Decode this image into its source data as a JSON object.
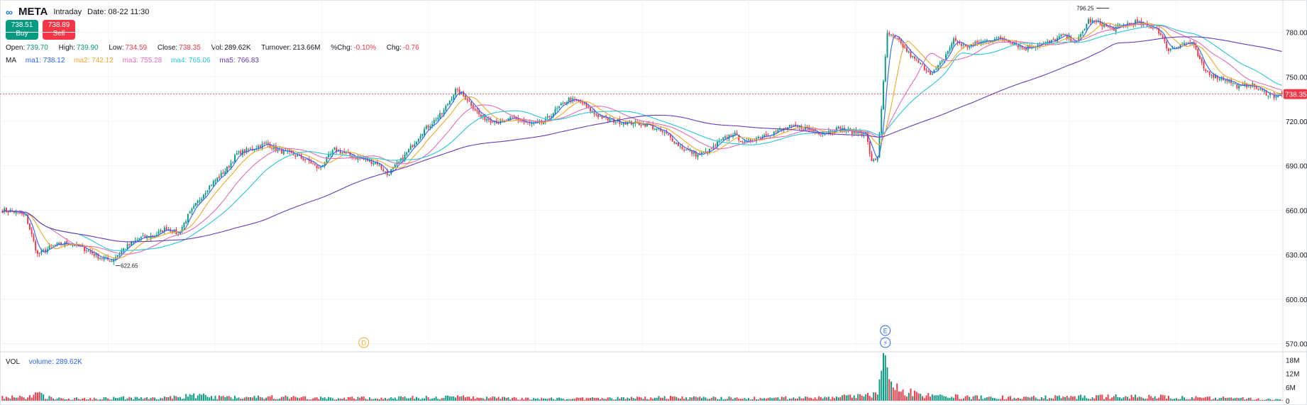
{
  "header": {
    "symbol": "META",
    "mode": "Intraday",
    "date_label": "Date: 08-22 11:30"
  },
  "buttons": {
    "buy_price": "738.51",
    "buy_label": "Buy",
    "sell_price": "738.89",
    "sell_label": "Sell"
  },
  "ohlc": {
    "open_label": "Open:",
    "open": "739.70",
    "high_label": "High:",
    "high": "739.90",
    "low_label": "Low:",
    "low": "734.59",
    "close_label": "Close:",
    "close": "738.35",
    "vol_label": "Vol:",
    "vol": "289.62K",
    "turnover_label": "Turnover:",
    "turnover": "213.66M",
    "pchg_label": "%Chg:",
    "pchg": "-0.10%",
    "chg_label": "Chg:",
    "chg": "-0.76"
  },
  "ma_legend": {
    "title": "MA",
    "items": [
      {
        "label": "ma1: 738.12",
        "color": "#2962ff"
      },
      {
        "label": "ma2: 742.12",
        "color": "#f5a623"
      },
      {
        "label": "ma3: 755.28",
        "color": "#e36bb8"
      },
      {
        "label": "ma4: 765.06",
        "color": "#26c6da"
      },
      {
        "label": "ma5: 766.83",
        "color": "#673ab7"
      }
    ]
  },
  "volume_legend": {
    "title": "VOL",
    "label": "volume: 289.62K"
  },
  "chart_data": {
    "type": "candlestick",
    "price_axis": {
      "ticks": [
        "780.00",
        "750.00",
        "720.00",
        "690.00",
        "660.00",
        "630.00",
        "600.00",
        "570.00"
      ],
      "ylim": [
        565,
        797
      ]
    },
    "volume_axis": {
      "ticks": [
        "18M",
        "12M",
        "6M",
        "0"
      ],
      "ylim": [
        0,
        20
      ]
    },
    "last_price": "738.35",
    "annotations": {
      "high": "796.25",
      "low": "622.65",
      "markers": [
        "D",
        "E",
        "⚡"
      ]
    },
    "up_color": "#089981",
    "down_color": "#f23645",
    "anchors": [
      [
        0,
        660
      ],
      [
        6,
        659
      ],
      [
        12,
        656
      ],
      [
        18,
        630
      ],
      [
        26,
        636
      ],
      [
        34,
        638
      ],
      [
        42,
        634
      ],
      [
        50,
        628
      ],
      [
        56,
        626
      ],
      [
        62,
        634
      ],
      [
        70,
        641
      ],
      [
        78,
        643
      ],
      [
        84,
        648
      ],
      [
        90,
        644
      ],
      [
        95,
        656
      ],
      [
        105,
        675
      ],
      [
        115,
        688
      ],
      [
        120,
        698
      ],
      [
        127,
        701
      ],
      [
        135,
        705
      ],
      [
        142,
        700
      ],
      [
        150,
        697
      ],
      [
        157,
        693
      ],
      [
        162,
        688
      ],
      [
        170,
        701
      ],
      [
        178,
        697
      ],
      [
        185,
        694
      ],
      [
        192,
        692
      ],
      [
        197,
        684
      ],
      [
        205,
        695
      ],
      [
        215,
        713
      ],
      [
        225,
        725
      ],
      [
        232,
        741
      ],
      [
        238,
        735
      ],
      [
        245,
        723
      ],
      [
        255,
        719
      ],
      [
        262,
        722
      ],
      [
        270,
        718
      ],
      [
        277,
        719
      ],
      [
        282,
        726
      ],
      [
        290,
        735
      ],
      [
        297,
        732
      ],
      [
        303,
        725
      ],
      [
        310,
        721
      ],
      [
        320,
        719
      ],
      [
        330,
        718
      ],
      [
        340,
        711
      ],
      [
        348,
        702
      ],
      [
        356,
        697
      ],
      [
        362,
        700
      ],
      [
        367,
        706
      ],
      [
        374,
        712
      ],
      [
        380,
        705
      ],
      [
        388,
        710
      ],
      [
        396,
        713
      ],
      [
        403,
        716
      ],
      [
        410,
        716
      ],
      [
        414,
        714
      ],
      [
        420,
        712
      ],
      [
        428,
        715
      ],
      [
        435,
        713
      ],
      [
        442,
        712
      ],
      [
        445,
        692
      ],
      [
        448,
        696
      ],
      [
        453,
        779
      ],
      [
        458,
        775
      ],
      [
        466,
        763
      ],
      [
        471,
        757
      ],
      [
        476,
        752
      ],
      [
        481,
        760
      ],
      [
        487,
        775
      ],
      [
        493,
        770
      ],
      [
        500,
        773
      ],
      [
        508,
        776
      ],
      [
        516,
        774
      ],
      [
        523,
        769
      ],
      [
        530,
        772
      ],
      [
        536,
        773
      ],
      [
        543,
        778
      ],
      [
        550,
        773
      ],
      [
        556,
        788
      ],
      [
        562,
        786
      ],
      [
        568,
        782
      ],
      [
        574,
        785
      ],
      [
        580,
        787
      ],
      [
        586,
        784
      ],
      [
        591,
        783
      ],
      [
        597,
        768
      ],
      [
        603,
        772
      ],
      [
        609,
        773
      ],
      [
        615,
        755
      ],
      [
        621,
        750
      ],
      [
        627,
        748
      ],
      [
        633,
        743
      ],
      [
        639,
        745
      ],
      [
        645,
        740
      ],
      [
        651,
        737
      ],
      [
        655,
        738.35
      ]
    ],
    "volume_profile": [
      [
        0,
        1.5
      ],
      [
        12,
        1.6
      ],
      [
        18,
        3
      ],
      [
        25,
        1.2
      ],
      [
        40,
        1.0
      ],
      [
        60,
        1.3
      ],
      [
        80,
        1.1
      ],
      [
        100,
        2.5
      ],
      [
        110,
        1.6
      ],
      [
        140,
        1.8
      ],
      [
        160,
        1.2
      ],
      [
        200,
        1.3
      ],
      [
        230,
        1.8
      ],
      [
        260,
        1.1
      ],
      [
        300,
        1.0
      ],
      [
        340,
        1.5
      ],
      [
        380,
        1.2
      ],
      [
        420,
        1.4
      ],
      [
        440,
        2.2
      ],
      [
        447,
        3.5
      ],
      [
        452,
        20
      ],
      [
        455,
        6
      ],
      [
        470,
        2.5
      ],
      [
        500,
        1.6
      ],
      [
        530,
        1.5
      ],
      [
        550,
        1.8
      ],
      [
        590,
        2.0
      ],
      [
        610,
        1.4
      ],
      [
        630,
        1.2
      ],
      [
        655,
        0.5
      ]
    ]
  }
}
